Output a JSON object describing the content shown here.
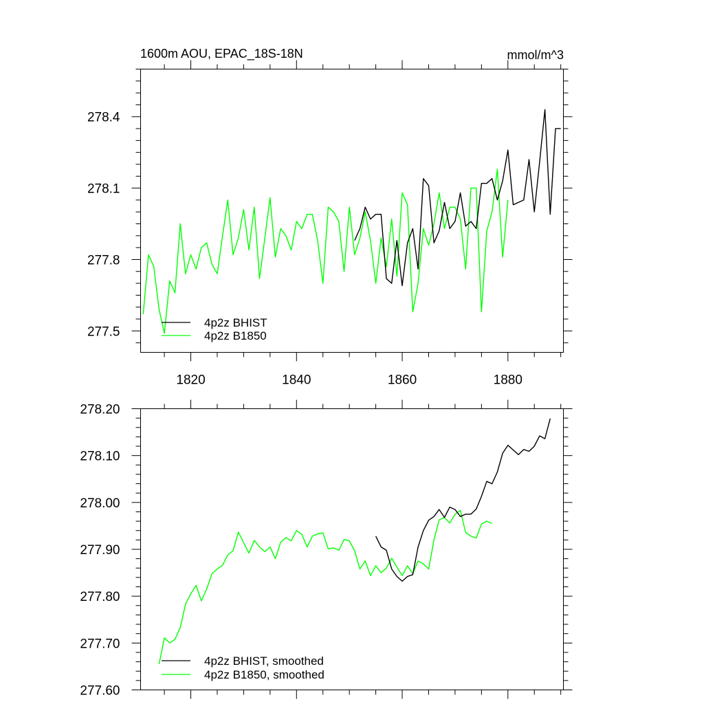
{
  "chart_data": [
    {
      "type": "line",
      "title": "1600m AOU, EPAC_18S-18N",
      "units": "mmol/m^3",
      "xlabel": "",
      "ylabel": "",
      "xlim": [
        1810.5,
        1890.5
      ],
      "ylim": [
        277.41,
        278.6
      ],
      "xticks": [
        1820,
        1840,
        1860,
        1880
      ],
      "yticks": [
        277.5,
        277.8,
        278.1,
        278.4
      ],
      "xtick_labels": [
        "1820",
        "1840",
        "1860",
        "1880"
      ],
      "ytick_labels": [
        "277.5",
        "277.8",
        "278.1",
        "278.4"
      ],
      "legend_position": "lower-left",
      "grid": false,
      "series": [
        {
          "name": "4p2z BHIST",
          "color": "#000000",
          "x": [
            1851,
            1852,
            1853,
            1854,
            1855,
            1856,
            1857,
            1858,
            1859,
            1860,
            1861,
            1862,
            1863,
            1864,
            1865,
            1866,
            1867,
            1868,
            1869,
            1870,
            1871,
            1872,
            1873,
            1874,
            1875,
            1876,
            1877,
            1878,
            1879,
            1880,
            1881,
            1882,
            1883,
            1884,
            1885,
            1886,
            1887,
            1888,
            1889,
            1890
          ],
          "values": [
            277.88,
            277.93,
            278.02,
            277.97,
            277.99,
            277.99,
            277.72,
            277.7,
            277.88,
            277.69,
            277.87,
            277.93,
            277.76,
            278.14,
            278.11,
            277.87,
            277.92,
            278.04,
            277.93,
            277.96,
            278.08,
            277.94,
            277.96,
            277.93,
            278.12,
            278.12,
            278.14,
            278.05,
            278.13,
            278.26,
            278.03,
            278.04,
            278.05,
            278.22,
            278.0,
            278.21,
            278.43,
            277.99,
            278.35,
            278.35
          ]
        },
        {
          "name": "4p2z B1850",
          "color": "#00ff00",
          "x": [
            1811,
            1812,
            1813,
            1814,
            1815,
            1816,
            1817,
            1818,
            1819,
            1820,
            1821,
            1822,
            1823,
            1824,
            1825,
            1826,
            1827,
            1828,
            1829,
            1830,
            1831,
            1832,
            1833,
            1834,
            1835,
            1836,
            1837,
            1838,
            1839,
            1840,
            1841,
            1842,
            1843,
            1844,
            1845,
            1846,
            1847,
            1848,
            1849,
            1850,
            1851,
            1852,
            1853,
            1854,
            1855,
            1856,
            1857,
            1858,
            1859,
            1860,
            1861,
            1862,
            1863,
            1864,
            1865,
            1866,
            1867,
            1868,
            1869,
            1870,
            1871,
            1872,
            1873,
            1874,
            1875,
            1876,
            1877,
            1878,
            1879,
            1880
          ],
          "values": [
            277.57,
            277.82,
            277.77,
            277.59,
            277.49,
            277.71,
            277.66,
            277.95,
            277.74,
            277.82,
            277.76,
            277.85,
            277.87,
            277.78,
            277.74,
            277.9,
            278.05,
            277.82,
            277.89,
            278.01,
            277.84,
            278.02,
            277.72,
            277.89,
            278.06,
            277.81,
            277.93,
            277.9,
            277.84,
            277.96,
            277.93,
            277.99,
            277.99,
            277.88,
            277.7,
            278.02,
            278.0,
            277.96,
            277.75,
            278.02,
            277.82,
            277.89,
            278.0,
            277.88,
            277.7,
            277.89,
            277.77,
            277.97,
            277.73,
            278.08,
            278.03,
            277.58,
            277.7,
            277.93,
            277.86,
            277.95,
            278.08,
            277.93,
            278.02,
            278.02,
            277.97,
            277.76,
            278.1,
            278.1,
            277.58,
            277.92,
            278.0,
            278.18,
            277.81,
            278.05
          ]
        }
      ]
    },
    {
      "type": "line",
      "title": "",
      "xlabel": "",
      "ylabel": "",
      "xlim": [
        1810.5,
        1890.5
      ],
      "ylim": [
        277.6,
        278.2
      ],
      "yticks": [
        277.6,
        277.7,
        277.8,
        277.9,
        278.0,
        278.1,
        278.2
      ],
      "ytick_labels": [
        "277.60",
        "277.70",
        "277.80",
        "277.90",
        "278.00",
        "278.10",
        "278.20"
      ],
      "legend_position": "lower-left",
      "grid": false,
      "series": [
        {
          "name": "4p2z BHIST, smoothed",
          "color": "#000000",
          "x": [
            1855,
            1856,
            1857,
            1858,
            1859,
            1860,
            1861,
            1862,
            1863,
            1864,
            1865,
            1866,
            1867,
            1868,
            1869,
            1870,
            1871,
            1872,
            1873,
            1874,
            1875,
            1876,
            1877,
            1878,
            1879,
            1880,
            1881,
            1882,
            1883,
            1884,
            1885,
            1886,
            1887,
            1888
          ],
          "values": [
            277.928,
            277.905,
            277.898,
            277.858,
            277.842,
            277.832,
            277.842,
            277.846,
            277.905,
            277.94,
            277.962,
            277.97,
            277.985,
            277.968,
            277.99,
            277.985,
            277.97,
            277.975,
            277.975,
            277.986,
            278.013,
            278.045,
            278.04,
            278.065,
            278.105,
            278.122,
            278.112,
            278.102,
            278.113,
            278.109,
            278.12,
            278.142,
            278.136,
            278.179
          ]
        },
        {
          "name": "4p2z B1850, smoothed",
          "color": "#00ff00",
          "x": [
            1814,
            1815,
            1816,
            1817,
            1818,
            1819,
            1820,
            1821,
            1822,
            1823,
            1824,
            1825,
            1826,
            1827,
            1828,
            1829,
            1830,
            1831,
            1832,
            1833,
            1834,
            1835,
            1836,
            1837,
            1838,
            1839,
            1840,
            1841,
            1842,
            1843,
            1844,
            1845,
            1846,
            1847,
            1848,
            1849,
            1850,
            1851,
            1852,
            1853,
            1854,
            1855,
            1856,
            1857,
            1858,
            1859,
            1860,
            1861,
            1862,
            1863,
            1864,
            1865,
            1866,
            1867,
            1868,
            1869,
            1870,
            1871,
            1872,
            1873,
            1874,
            1875,
            1876,
            1877
          ],
          "values": [
            277.655,
            277.711,
            277.7,
            277.708,
            277.733,
            277.783,
            277.805,
            277.823,
            277.79,
            277.815,
            277.848,
            277.858,
            277.866,
            277.888,
            277.897,
            277.937,
            277.914,
            277.892,
            277.919,
            277.905,
            277.895,
            277.905,
            277.88,
            277.915,
            277.925,
            277.918,
            277.94,
            277.932,
            277.905,
            277.928,
            277.933,
            277.935,
            277.901,
            277.903,
            277.898,
            277.921,
            277.918,
            277.897,
            277.858,
            277.875,
            277.844,
            277.865,
            277.85,
            277.86,
            277.881,
            277.862,
            277.844,
            277.865,
            277.848,
            277.875,
            277.869,
            277.858,
            277.92,
            277.963,
            277.968,
            277.956,
            277.975,
            277.983,
            277.936,
            277.928,
            277.924,
            277.954,
            277.96,
            277.955
          ]
        }
      ]
    }
  ]
}
